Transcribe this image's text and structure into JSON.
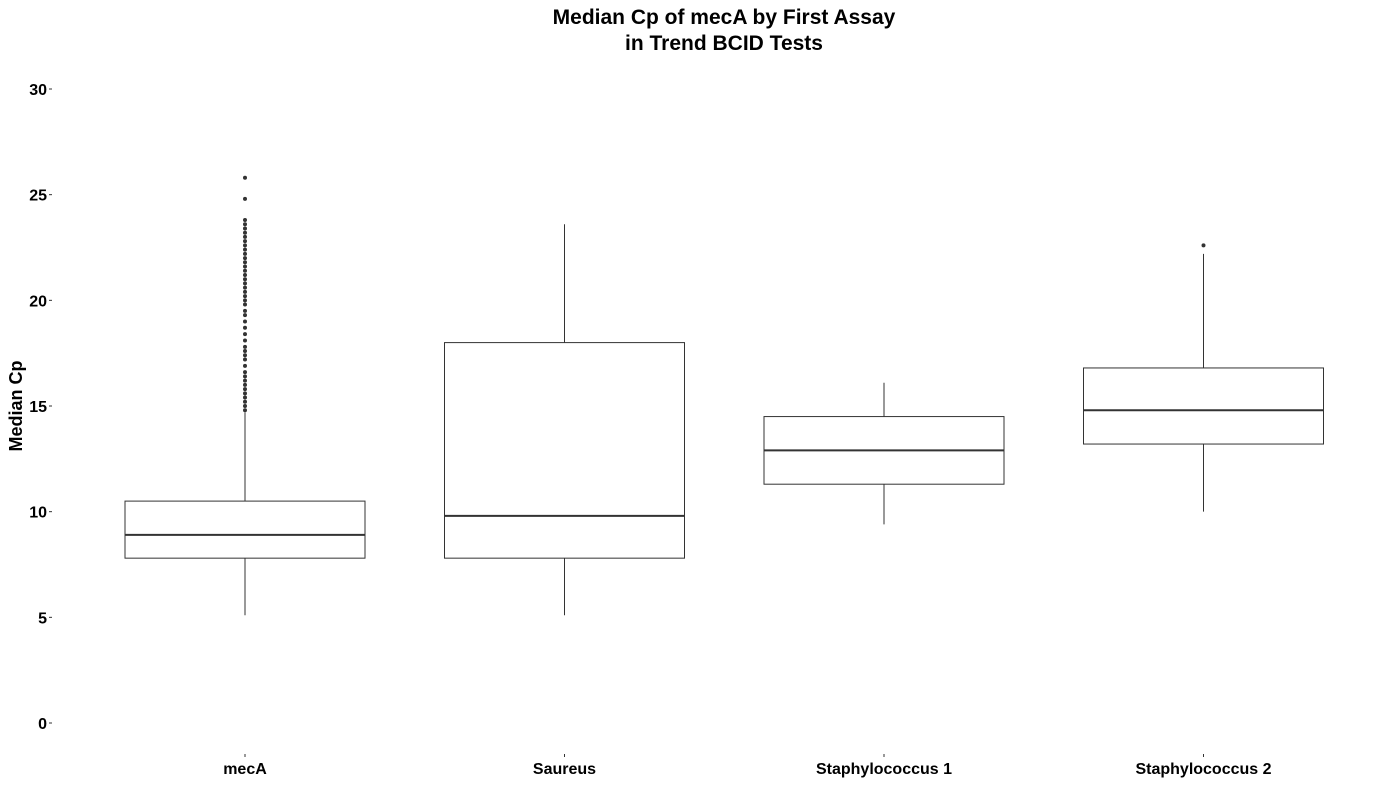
{
  "chart_data": {
    "type": "box",
    "title": [
      "Median Cp of mecA by First Assay",
      "in Trend BCID Tests"
    ],
    "xlabel": "",
    "ylabel": "Median Cp",
    "ylim": [
      0,
      30
    ],
    "yticks": [
      0,
      5,
      10,
      15,
      20,
      25,
      30
    ],
    "grid": false,
    "legend": "none",
    "colors": {
      "box_stroke": "#333333",
      "box_fill": "#ffffff",
      "outlier": "#333333",
      "text": "#000000"
    },
    "categories": [
      "mecA",
      "Saureus",
      "Staphylococcus 1",
      "Staphylococcus 2"
    ],
    "boxes": [
      {
        "category": "mecA",
        "whisker_low": 5.1,
        "q1": 7.8,
        "median": 8.9,
        "q3": 10.5,
        "whisker_high": 14.7,
        "outliers": [
          14.8,
          15.0,
          15.2,
          15.4,
          15.6,
          15.8,
          16.0,
          16.2,
          16.4,
          16.6,
          16.9,
          17.2,
          17.4,
          17.6,
          17.8,
          18.1,
          18.4,
          18.7,
          19.0,
          19.3,
          19.5,
          19.8,
          20.0,
          20.2,
          20.4,
          20.6,
          20.8,
          21.0,
          21.2,
          21.4,
          21.6,
          21.8,
          22.0,
          22.2,
          22.4,
          22.6,
          22.8,
          23.0,
          23.2,
          23.4,
          23.6,
          23.8,
          24.8,
          25.8
        ]
      },
      {
        "category": "Saureus",
        "whisker_low": 5.1,
        "q1": 7.8,
        "median": 9.8,
        "q3": 18.0,
        "whisker_high": 23.6,
        "outliers": []
      },
      {
        "category": "Staphylococcus 1",
        "whisker_low": 9.4,
        "q1": 11.3,
        "median": 12.9,
        "q3": 14.5,
        "whisker_high": 16.1,
        "outliers": []
      },
      {
        "category": "Staphylococcus 2",
        "whisker_low": 10.0,
        "q1": 13.2,
        "median": 14.8,
        "q3": 16.8,
        "whisker_high": 22.2,
        "outliers": [
          22.6
        ]
      }
    ]
  }
}
